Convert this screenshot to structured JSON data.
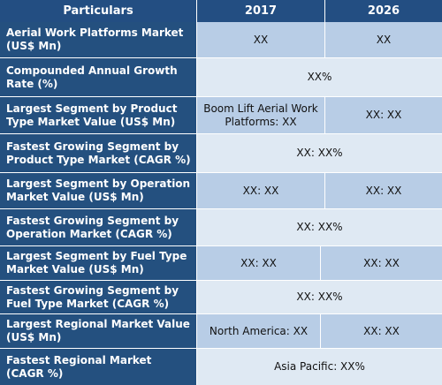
{
  "header": {
    "col1": "Particulars",
    "col2": "2017",
    "col3": "2026"
  },
  "rows": [
    {
      "label": "Aerial Work Platforms Market (US$ Mn)",
      "v2017": "XX",
      "v2026": "XX"
    },
    {
      "label": "Compounded Annual Growth Rate (%)",
      "merged": "XX%"
    },
    {
      "label": "Largest Segment by Product Type Market Value (US$ Mn)",
      "v2017": "Boom Lift Aerial Work Platforms: XX",
      "v2026": "XX: XX"
    },
    {
      "label": "Fastest Growing Segment by Product Type Market (CAGR %)",
      "merged": "XX: XX%"
    },
    {
      "label": "Largest Segment by Operation Market Value (US$ Mn)",
      "v2017": "XX: XX",
      "v2026": "XX: XX"
    },
    {
      "label": "Fastest Growing Segment by Operation Market (CAGR %)",
      "merged": "XX: XX%"
    },
    {
      "label": "Largest Segment by Fuel Type Market Value (US$ Mn)",
      "v2017": "XX: XX",
      "v2026": "XX: XX"
    },
    {
      "label": "Fastest Growing Segment by Fuel Type Market (CAGR %)",
      "merged": "XX: XX%"
    },
    {
      "label": "Largest Regional Market Value (US$ Mn)",
      "v2017": "North America: XX",
      "v2026": "XX: XX"
    },
    {
      "label": "Fastest Regional Market (CAGR %)",
      "merged": "Asia Pacific: XX%"
    }
  ],
  "colors": {
    "header": "#234e82",
    "label": "#24507f",
    "split_row": "#b8cde6",
    "merged_row": "#dfe9f3"
  }
}
